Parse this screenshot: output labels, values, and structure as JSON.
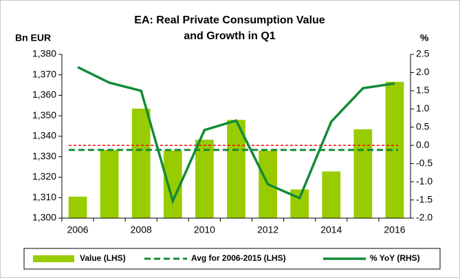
{
  "chart_data": {
    "type": "bar_line",
    "title_lines": [
      "EA: Real Private Consumption Value",
      "and Growth in Q1"
    ],
    "y_axis_label": "Bn EUR",
    "y2_axis_label": "%",
    "categories": [
      "2006",
      null,
      "2008",
      null,
      "2010",
      null,
      "2012",
      null,
      "2014",
      null,
      "2016"
    ],
    "series": [
      {
        "name": "Value (LHS)",
        "kind": "bar",
        "color": "#99cc00",
        "values": [
          1310.5,
          1333.3,
          1353.5,
          1333,
          1338.3,
          1348,
          1333,
          1314,
          1322.8,
          1343.4,
          1366.6
        ]
      },
      {
        "name": "Avg for 2006-2015 (LHS)",
        "kind": "hline",
        "color": "#138a36",
        "value": 1333.3
      },
      {
        "name": "% YoY (RHS)",
        "kind": "line",
        "axis": "y2",
        "color": "#138a36",
        "values": [
          2.15,
          1.72,
          1.5,
          -1.53,
          0.42,
          0.68,
          -1.07,
          -1.45,
          0.65,
          1.57,
          1.7
        ]
      }
    ],
    "y2_zero_line_color": "#ff0000",
    "ylim": [
      1300,
      1380
    ],
    "yticks": [
      {
        "value": 1300,
        "label": "1,300"
      },
      {
        "value": 1310,
        "label": "1,310"
      },
      {
        "value": 1320,
        "label": "1,320"
      },
      {
        "value": 1330,
        "label": "1,330"
      },
      {
        "value": 1340,
        "label": "1,340"
      },
      {
        "value": 1350,
        "label": "1,350"
      },
      {
        "value": 1360,
        "label": "1,360"
      },
      {
        "value": 1370,
        "label": "1,370"
      },
      {
        "value": 1380,
        "label": "1,380"
      }
    ],
    "y2lim": [
      -2,
      2.5
    ],
    "y2ticks": [
      {
        "value": -2,
        "label": "-2.0"
      },
      -1.5,
      {
        "value": -1,
        "label": "-1.0"
      },
      -0.5,
      {
        "value": 0,
        "label": "0.0"
      },
      0.5,
      {
        "value": 1,
        "label": "1.0"
      },
      1.5,
      {
        "value": 2,
        "label": "2.0"
      },
      2.5
    ]
  }
}
